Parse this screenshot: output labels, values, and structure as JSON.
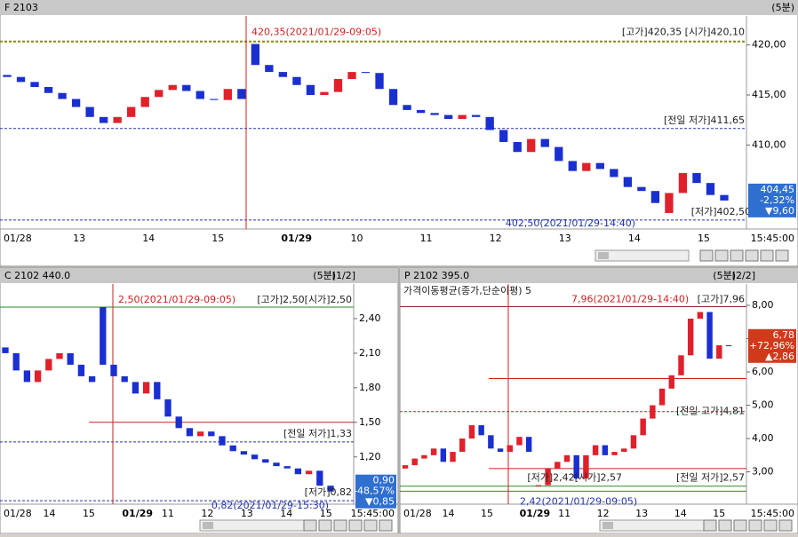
{
  "panels": [
    {
      "title": "F 2103",
      "interval": "(5분)",
      "ylim": [
        401.6,
        422.9
      ],
      "yticks": [
        {
          "value": 420,
          "label": "420,00"
        },
        {
          "value": 415,
          "label": "415,00"
        },
        {
          "value": 410,
          "label": "410,00"
        }
      ],
      "xlabels": [
        "01/28",
        "13",
        "14",
        "15",
        "01/29",
        "10",
        "11",
        "12",
        "13",
        "14",
        "15",
        "15:45:00"
      ],
      "hlines": [
        {
          "value": 420.35,
          "color": "#8a8a00",
          "style": "dashed"
        },
        {
          "value": 411.65,
          "color": "#2233aa",
          "style": "dashed"
        },
        {
          "value": 402.5,
          "color": "#2233aa",
          "style": "dashed"
        }
      ],
      "annotations": [
        {
          "text": "420,35(2021/01/29-09:05)",
          "value": 420.35
        },
        {
          "text": "[고가]420,35 [시가]420,10",
          "value": 420.35
        },
        {
          "text": "[전일 저가]411,65",
          "value": 411.65
        },
        {
          "text": "402,50(2021/01/29-14:40)",
          "value": 402.5
        },
        {
          "text": "[저가]402,50",
          "value": 402.5
        }
      ],
      "price_box": {
        "value": 404.45,
        "lines": [
          "404,45",
          "-2,32%",
          "▼9,60"
        ],
        "color": "#2f6fd0"
      },
      "candles": [
        [
          417.0,
          416.8
        ],
        [
          416.8,
          416.3
        ],
        [
          416.3,
          415.8
        ],
        [
          415.8,
          415.2
        ],
        [
          415.2,
          414.6
        ],
        [
          414.6,
          413.8
        ],
        [
          413.8,
          412.8
        ],
        [
          412.8,
          412.2
        ],
        [
          412.2,
          412.8
        ],
        [
          412.8,
          413.8
        ],
        [
          413.8,
          414.8
        ],
        [
          414.8,
          415.5
        ],
        [
          415.5,
          416.0
        ],
        [
          416.0,
          415.4
        ],
        [
          415.4,
          414.6
        ],
        [
          414.6,
          414.5
        ],
        [
          414.5,
          415.6
        ],
        [
          415.6,
          414.6
        ],
        [
          420.1,
          418.0
        ],
        [
          418.0,
          417.3
        ],
        [
          417.3,
          416.8
        ],
        [
          416.8,
          416.0
        ],
        [
          416.0,
          415.0
        ],
        [
          415.0,
          415.3
        ],
        [
          415.3,
          416.6
        ],
        [
          416.6,
          417.3
        ],
        [
          417.3,
          417.2
        ],
        [
          417.2,
          415.6
        ],
        [
          415.6,
          414.0
        ],
        [
          414.0,
          413.5
        ],
        [
          413.5,
          413.2
        ],
        [
          413.2,
          413.0
        ],
        [
          413.0,
          412.6
        ],
        [
          412.6,
          413.0
        ],
        [
          413.0,
          412.8
        ],
        [
          412.8,
          411.5
        ],
        [
          411.5,
          410.3
        ],
        [
          410.3,
          409.3
        ],
        [
          409.3,
          410.6
        ],
        [
          410.6,
          409.8
        ],
        [
          409.8,
          408.4
        ],
        [
          408.4,
          407.4
        ],
        [
          407.4,
          408.2
        ],
        [
          408.2,
          407.6
        ],
        [
          407.6,
          406.8
        ],
        [
          406.8,
          405.8
        ],
        [
          405.8,
          405.4
        ],
        [
          405.4,
          404.2
        ],
        [
          403.2,
          405.2
        ],
        [
          405.2,
          407.2
        ],
        [
          407.2,
          406.2
        ],
        [
          406.2,
          405.0
        ],
        [
          405.0,
          404.45
        ]
      ]
    },
    {
      "title": "C 2102 440.0",
      "interval": "(5분)",
      "page": "[1/2]",
      "ylim": [
        0.79,
        2.7
      ],
      "yticks": [
        {
          "value": 2.4,
          "label": "2,40"
        },
        {
          "value": 2.1,
          "label": "2,10"
        },
        {
          "value": 1.8,
          "label": "1,80"
        },
        {
          "value": 1.5,
          "label": "1,50"
        },
        {
          "value": 1.2,
          "label": "1,20"
        }
      ],
      "xlabels": [
        "01/28",
        "14",
        "15",
        "01/29",
        "11",
        "12",
        "13",
        "14",
        "15",
        "15:45:00"
      ],
      "hlines": [
        {
          "value": 2.5,
          "color": "#2a8a2a",
          "style": "solid"
        },
        {
          "value": 1.5,
          "color": "#cc2222",
          "style": "solid"
        },
        {
          "value": 1.33,
          "color": "#2233aa",
          "style": "dashed"
        },
        {
          "value": 0.82,
          "color": "#2233aa",
          "style": "dashed"
        }
      ],
      "annotations": [
        {
          "text": "2,50(2021/01/29-09:05)",
          "value": 2.5
        },
        {
          "text": "[고가]2,50[시가]2,50",
          "value": 2.5
        },
        {
          "text": "[전일 저가]1,33",
          "value": 1.33
        },
        {
          "text": "[저가]0,82",
          "value": 0.82
        },
        {
          "text": "0,82(2021/01/29-15:30)",
          "value": 0.82
        }
      ],
      "price_box": {
        "value": 0.9,
        "lines": [
          "0,90",
          "-48,57%",
          "▼0,85"
        ],
        "color": "#2f6fd0"
      },
      "candles": [
        [
          2.15,
          2.1
        ],
        [
          2.1,
          1.95
        ],
        [
          1.95,
          1.85
        ],
        [
          1.85,
          1.95
        ],
        [
          1.95,
          2.05
        ],
        [
          2.05,
          2.1
        ],
        [
          2.1,
          2.0
        ],
        [
          2.0,
          1.9
        ],
        [
          1.9,
          1.85
        ],
        [
          2.5,
          2.0
        ],
        [
          2.0,
          1.9
        ],
        [
          1.9,
          1.85
        ],
        [
          1.85,
          1.75
        ],
        [
          1.75,
          1.85
        ],
        [
          1.85,
          1.7
        ],
        [
          1.7,
          1.55
        ],
        [
          1.55,
          1.45
        ],
        [
          1.45,
          1.38
        ],
        [
          1.38,
          1.42
        ],
        [
          1.42,
          1.38
        ],
        [
          1.38,
          1.3
        ],
        [
          1.3,
          1.25
        ],
        [
          1.25,
          1.22
        ],
        [
          1.22,
          1.18
        ],
        [
          1.18,
          1.15
        ],
        [
          1.15,
          1.12
        ],
        [
          1.12,
          1.1
        ],
        [
          1.1,
          1.05
        ],
        [
          1.05,
          1.08
        ],
        [
          1.08,
          0.95
        ],
        [
          0.95,
          0.9
        ]
      ]
    },
    {
      "title": "P 2102 395.0",
      "interval": "(5분)",
      "page": "[2/2]",
      "indicator": "가격이동평균(종가,단순이평) 5",
      "ylim": [
        2.03,
        8.64
      ],
      "yticks": [
        {
          "value": 8,
          "label": "8,00"
        },
        {
          "value": 7,
          "label": "7,00"
        },
        {
          "value": 6,
          "label": "6,00"
        },
        {
          "value": 5,
          "label": "5,00"
        },
        {
          "value": 4,
          "label": "4,00"
        },
        {
          "value": 3,
          "label": "3,00"
        }
      ],
      "xlabels": [
        "01/28",
        "14",
        "15",
        "01/29",
        "11",
        "12",
        "13",
        "14",
        "15",
        "15:45:00"
      ],
      "hlines": [
        {
          "value": 7.96,
          "color": "#992222",
          "style": "solid"
        },
        {
          "value": 5.8,
          "color": "#cc2222",
          "style": "solid"
        },
        {
          "value": 4.81,
          "color": "#cc2222",
          "style": "dashed"
        },
        {
          "value": 3.1,
          "color": "#cc2222",
          "style": "solid"
        },
        {
          "value": 2.57,
          "color": "#2a8a2a",
          "style": "solid"
        },
        {
          "value": 2.42,
          "color": "#2a8a2a",
          "style": "solid"
        }
      ],
      "annotations": [
        {
          "text": "7,96(2021/01/29-14:40)",
          "value": 7.96
        },
        {
          "text": "[고가]7,96",
          "value": 7.96
        },
        {
          "text": "[전일 고가]4,81",
          "value": 4.81
        },
        {
          "text": "[저가]2,42[시가]2,57",
          "value": 2.57
        },
        {
          "text": "[전일 저가]2,57",
          "value": 2.57
        },
        {
          "text": "2,42(2021/01/29-09:05)",
          "value": 2.42
        }
      ],
      "price_box": {
        "value": 6.78,
        "lines": [
          "6,78",
          "+72,96%",
          "▲2,86"
        ],
        "color": "#d03a1a"
      },
      "candles": [
        [
          3.1,
          3.2
        ],
        [
          3.2,
          3.4
        ],
        [
          3.4,
          3.5
        ],
        [
          3.5,
          3.7
        ],
        [
          3.7,
          3.3
        ],
        [
          3.3,
          3.6
        ],
        [
          3.6,
          4.0
        ],
        [
          4.0,
          4.4
        ],
        [
          4.4,
          4.1
        ],
        [
          4.1,
          3.7
        ],
        [
          3.7,
          3.6
        ],
        [
          3.6,
          3.8
        ],
        [
          3.8,
          4.05
        ],
        [
          4.05,
          3.6
        ],
        [
          2.57,
          2.6
        ],
        [
          2.6,
          3.1
        ],
        [
          3.1,
          3.3
        ],
        [
          3.3,
          3.5
        ],
        [
          3.5,
          2.8
        ],
        [
          2.8,
          3.5
        ],
        [
          3.5,
          3.8
        ],
        [
          3.8,
          3.5
        ],
        [
          3.5,
          3.6
        ],
        [
          3.6,
          3.7
        ],
        [
          3.7,
          4.1
        ],
        [
          4.1,
          4.6
        ],
        [
          4.6,
          5.0
        ],
        [
          5.0,
          5.5
        ],
        [
          5.5,
          5.9
        ],
        [
          5.9,
          6.5
        ],
        [
          6.5,
          7.6
        ],
        [
          7.6,
          7.8
        ],
        [
          7.8,
          6.4
        ],
        [
          6.4,
          6.8
        ],
        [
          6.8,
          6.78
        ]
      ]
    }
  ]
}
